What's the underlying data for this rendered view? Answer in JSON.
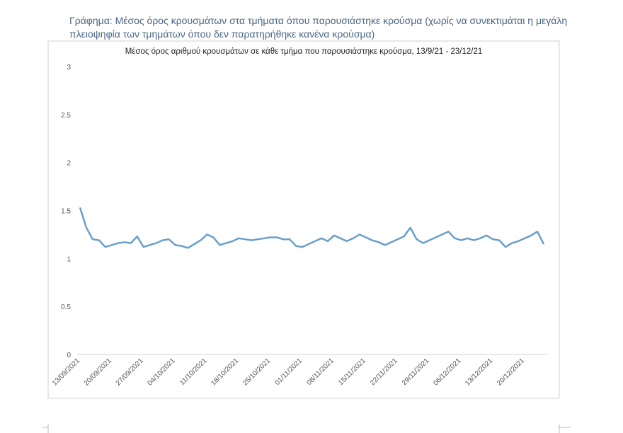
{
  "heading": "Γράφημα: Μέσος όρος κρουσμάτων στα τμήματα όπου παρουσιάστηκε κρούσμα (χωρίς να συνεκτιμάται η μεγάλη πλειοψηφία των τμημάτων όπου δεν παρατηρήθηκε κανένα κρούσμα)",
  "chart_data": {
    "type": "line",
    "title": "Μέσος όρος αριθμού κρουσμάτων σε κάθε τμήμα που παρουσιάστηκε κρούσμα, 13/9/21 - 23/12/21",
    "categories": [
      "13/09/2021",
      null,
      null,
      null,
      null,
      "20/09/2021",
      null,
      null,
      null,
      null,
      "27/09/2021",
      null,
      null,
      null,
      null,
      "04/10/2021",
      null,
      null,
      null,
      null,
      "11/10/2021",
      null,
      null,
      null,
      null,
      "18/10/2021",
      null,
      null,
      null,
      null,
      "25/10/2021",
      null,
      null,
      null,
      null,
      "01/11/2021",
      null,
      null,
      null,
      null,
      "08/11/2021",
      null,
      null,
      null,
      null,
      "15/11/2021",
      null,
      null,
      null,
      null,
      "22/11/2021",
      null,
      null,
      null,
      null,
      "29/11/2021",
      null,
      null,
      null,
      null,
      "06/12/2021",
      null,
      null,
      null,
      null,
      "13/12/2021",
      null,
      null,
      null,
      null,
      "20/12/2021",
      null,
      null,
      null
    ],
    "series": [
      {
        "name": "Μέσος όρος",
        "color": "#6a9fcb",
        "values": [
          1.53,
          1.32,
          1.2,
          1.19,
          1.12,
          1.14,
          1.16,
          1.17,
          1.16,
          1.23,
          1.12,
          1.14,
          1.16,
          1.19,
          1.2,
          1.14,
          1.13,
          1.11,
          1.15,
          1.19,
          1.25,
          1.22,
          1.14,
          1.16,
          1.18,
          1.21,
          1.2,
          1.19,
          1.2,
          1.21,
          1.22,
          1.22,
          1.2,
          1.2,
          1.13,
          1.12,
          1.15,
          1.18,
          1.21,
          1.18,
          1.24,
          1.21,
          1.18,
          1.21,
          1.25,
          1.22,
          1.19,
          1.17,
          1.14,
          1.17,
          1.2,
          1.23,
          1.32,
          1.2,
          1.16,
          1.19,
          1.22,
          1.25,
          1.28,
          1.21,
          1.19,
          1.21,
          1.19,
          1.21,
          1.24,
          1.2,
          1.19,
          1.12,
          1.16,
          1.18,
          1.21,
          1.24,
          1.28,
          1.15
        ]
      }
    ],
    "ylim": [
      0,
      3
    ],
    "yticks": [
      0,
      0.5,
      1,
      1.5,
      2,
      2.5,
      3
    ],
    "grid": false
  }
}
